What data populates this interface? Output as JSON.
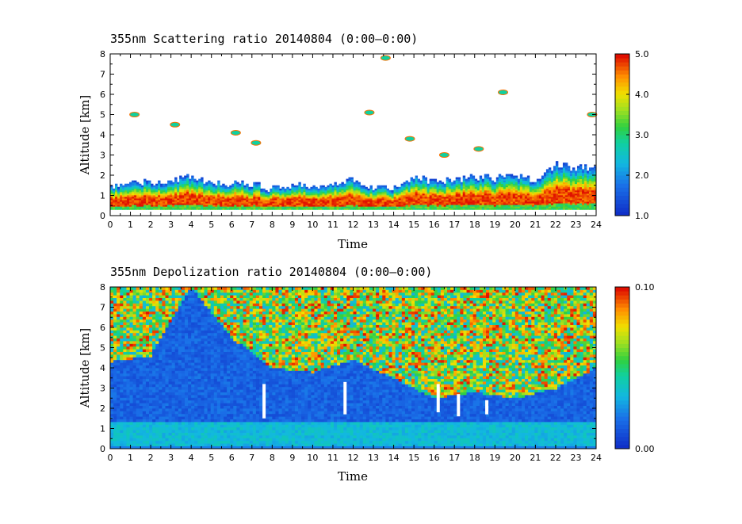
{
  "chart_data": [
    {
      "type": "heatmap",
      "title": "355nm Scattering ratio  20140804 (0:00–0:00)",
      "xlabel": "Time",
      "ylabel": "Altitude [km]",
      "xlim": [
        0,
        24
      ],
      "ylim": [
        0,
        8
      ],
      "x_ticks": [
        "0",
        "1",
        "2",
        "3",
        "4",
        "5",
        "6",
        "7",
        "8",
        "9",
        "10",
        "11",
        "12",
        "13",
        "14",
        "15",
        "16",
        "17",
        "18",
        "19",
        "20",
        "21",
        "22",
        "23",
        "24"
      ],
      "y_ticks": [
        "0",
        "1",
        "2",
        "3",
        "4",
        "5",
        "6",
        "7",
        "8"
      ],
      "colorbar": {
        "min": 1.0,
        "max": 5.0,
        "ticks": [
          "1.0",
          "2.0",
          "3.0",
          "4.0",
          "5.0"
        ]
      },
      "colors": {
        "low": "#1030c8",
        "high": "#e01000"
      },
      "layer_top_km": [
        {
          "t": 0,
          "top": 1.4
        },
        {
          "t": 1,
          "top": 1.6
        },
        {
          "t": 2,
          "top": 1.6
        },
        {
          "t": 3,
          "top": 1.7
        },
        {
          "t": 4,
          "top": 1.9
        },
        {
          "t": 5,
          "top": 1.5
        },
        {
          "t": 6,
          "top": 1.6
        },
        {
          "t": 7,
          "top": 1.5
        },
        {
          "t": 8,
          "top": 1.3
        },
        {
          "t": 9,
          "top": 1.5
        },
        {
          "t": 10,
          "top": 1.4
        },
        {
          "t": 11,
          "top": 1.6
        },
        {
          "t": 12,
          "top": 1.8
        },
        {
          "t": 13,
          "top": 1.3
        },
        {
          "t": 14,
          "top": 1.3
        },
        {
          "t": 15,
          "top": 1.9
        },
        {
          "t": 16,
          "top": 1.6
        },
        {
          "t": 17,
          "top": 1.7
        },
        {
          "t": 18,
          "top": 1.9
        },
        {
          "t": 19,
          "top": 1.8
        },
        {
          "t": 20,
          "top": 1.9
        },
        {
          "t": 21,
          "top": 1.7
        },
        {
          "t": 22,
          "top": 2.5
        },
        {
          "t": 23,
          "top": 2.3
        },
        {
          "t": 24,
          "top": 2.4
        }
      ],
      "cloud_patches": [
        {
          "t": 1.2,
          "z": 5.0
        },
        {
          "t": 3.2,
          "z": 4.5
        },
        {
          "t": 6.2,
          "z": 4.1
        },
        {
          "t": 7.2,
          "z": 3.6
        },
        {
          "t": 13.6,
          "z": 7.8
        },
        {
          "t": 12.8,
          "z": 5.1
        },
        {
          "t": 14.8,
          "z": 3.8
        },
        {
          "t": 19.4,
          "z": 6.1
        },
        {
          "t": 23.8,
          "z": 5.0
        },
        {
          "t": 18.2,
          "z": 3.3
        },
        {
          "t": 16.5,
          "z": 3.0
        }
      ]
    },
    {
      "type": "heatmap",
      "title": "355nm Depolization ratio  20140804 (0:00–0:00)",
      "xlabel": "Time",
      "ylabel": "Altitude [km]",
      "xlim": [
        0,
        24
      ],
      "ylim": [
        0,
        8
      ],
      "x_ticks": [
        "0",
        "1",
        "2",
        "3",
        "4",
        "5",
        "6",
        "7",
        "8",
        "9",
        "10",
        "11",
        "12",
        "13",
        "14",
        "15",
        "16",
        "17",
        "18",
        "19",
        "20",
        "21",
        "22",
        "23",
        "24"
      ],
      "y_ticks": [
        "0",
        "1",
        "2",
        "3",
        "4",
        "5",
        "6",
        "7",
        "8"
      ],
      "colorbar": {
        "min": 0.0,
        "max": 0.1,
        "ticks": [
          "0.00",
          "0.10"
        ]
      },
      "colors": {
        "low": "#1030c8",
        "high": "#e01000"
      },
      "noisy_above_km": [
        {
          "t": 0,
          "z": 4.3
        },
        {
          "t": 2,
          "z": 4.6
        },
        {
          "t": 4,
          "z": 8.0
        },
        {
          "t": 6,
          "z": 5.5
        },
        {
          "t": 8,
          "z": 4.0
        },
        {
          "t": 10,
          "z": 3.8
        },
        {
          "t": 12,
          "z": 4.4
        },
        {
          "t": 14,
          "z": 3.5
        },
        {
          "t": 16,
          "z": 2.5
        },
        {
          "t": 18,
          "z": 2.8
        },
        {
          "t": 20,
          "z": 2.5
        },
        {
          "t": 22,
          "z": 3.0
        },
        {
          "t": 24,
          "z": 4.0
        }
      ],
      "white_gaps": [
        {
          "t": 7.6,
          "z0": 1.5,
          "z1": 3.2
        },
        {
          "t": 11.6,
          "z0": 1.7,
          "z1": 3.3
        },
        {
          "t": 16.2,
          "z0": 1.8,
          "z1": 3.2
        },
        {
          "t": 17.2,
          "z0": 1.6,
          "z1": 2.7
        },
        {
          "t": 18.6,
          "z0": 1.7,
          "z1": 2.4
        }
      ]
    }
  ]
}
